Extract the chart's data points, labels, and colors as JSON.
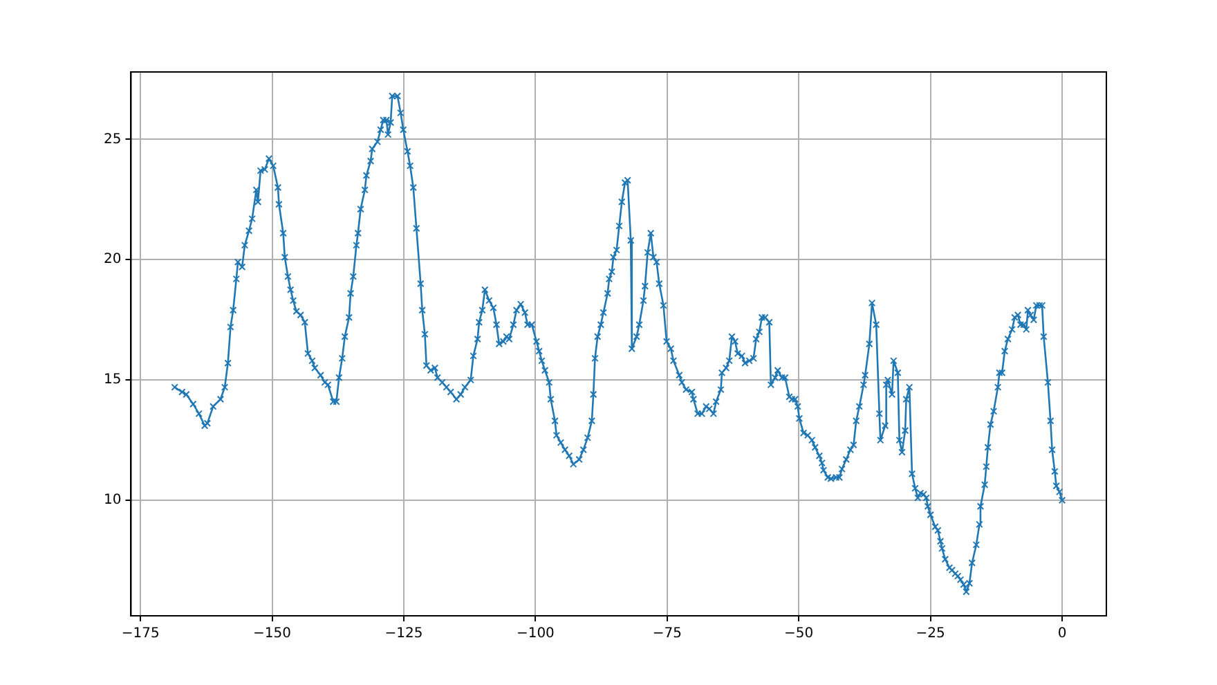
{
  "chart_data": {
    "type": "line",
    "x": [
      -168.5,
      -167.1,
      -166.3,
      -165,
      -163.9,
      -162.8,
      -162.3,
      -161.2,
      -159.8,
      -159,
      -158.4,
      -157.9,
      -157.4,
      -156.8,
      -156.5,
      -155.7,
      -155.2,
      -154.4,
      -153.8,
      -153,
      -152.7,
      -152.2,
      -151.4,
      -150.6,
      -149.8,
      -148.9,
      -148.7,
      -147.9,
      -147.6,
      -147,
      -146.5,
      -146,
      -145.4,
      -144.6,
      -143.8,
      -143.2,
      -142.4,
      -141.9,
      -140.8,
      -140,
      -139.4,
      -138.4,
      -137.8,
      -137.3,
      -136.7,
      -136.2,
      -135.4,
      -135.1,
      -134.6,
      -134,
      -133.7,
      -133.2,
      -132.4,
      -132.1,
      -131.3,
      -131,
      -130,
      -129.4,
      -128.9,
      -128.3,
      -128,
      -127.5,
      -127.2,
      -126.2,
      -125.6,
      -125.1,
      -124.3,
      -123.8,
      -123.2,
      -122.6,
      -121.8,
      -121.5,
      -121,
      -120.7,
      -119.9,
      -119.1,
      -118.6,
      -117.7,
      -116.9,
      -116.1,
      -115,
      -114.2,
      -113.4,
      -112.3,
      -111.8,
      -111,
      -110.7,
      -110.1,
      -109.6,
      -108.8,
      -108,
      -107.4,
      -106.9,
      -106.1,
      -105.5,
      -105,
      -104.2,
      -103.6,
      -102.8,
      -102,
      -101.5,
      -100.7,
      -99.8,
      -99.3,
      -98.8,
      -98.2,
      -97.4,
      -97.1,
      -96.3,
      -96,
      -95.2,
      -94.4,
      -93.6,
      -92.8,
      -91.7,
      -90.9,
      -90.1,
      -89.3,
      -89,
      -88.7,
      -88.2,
      -87.6,
      -87.1,
      -86.3,
      -86,
      -85.5,
      -85.2,
      -84.6,
      -84.1,
      -83.6,
      -83,
      -82.5,
      -81.9,
      -81.7,
      -80.8,
      -80.3,
      -79.5,
      -79.2,
      -78.7,
      -78.1,
      -77.6,
      -77,
      -76.5,
      -75.7,
      -75.1,
      -74.3,
      -73.8,
      -72.7,
      -72.2,
      -71.4,
      -70.3,
      -70,
      -69.2,
      -68.4,
      -67.6,
      -67,
      -66.2,
      -65.7,
      -64.8,
      -64.6,
      -63.8,
      -63.2,
      -62.7,
      -62.1,
      -61.6,
      -60.8,
      -60.2,
      -59.4,
      -58.6,
      -58.1,
      -57.5,
      -57,
      -56.4,
      -55.6,
      -55.3,
      -54.5,
      -54,
      -53.2,
      -52.6,
      -51.8,
      -51.3,
      -50.7,
      -50.2,
      -49.9,
      -49.1,
      -48.3,
      -47.5,
      -46.9,
      -46.1,
      -45.6,
      -45.3,
      -44.5,
      -43.9,
      -42.9,
      -42.3,
      -41.8,
      -41,
      -40.2,
      -39.6,
      -39.1,
      -38.5,
      -37.7,
      -37.4,
      -36.6,
      -36.1,
      -35.3,
      -34.7,
      -34.5,
      -33.6,
      -33.4,
      -33.1,
      -32.3,
      -32,
      -31.2,
      -30.9,
      -30.4,
      -29.8,
      -29.6,
      -29,
      -28.5,
      -27.9,
      -27.4,
      -26.9,
      -26.3,
      -25.8,
      -25.5,
      -25,
      -24.1,
      -23.6,
      -23.1,
      -22.8,
      -22.2,
      -21.4,
      -20.9,
      -20.3,
      -19.8,
      -19.3,
      -18.7,
      -18.2,
      -17.6,
      -17.1,
      -16.3,
      -15.7,
      -15.5,
      -14.7,
      -14.4,
      -14.1,
      -13.6,
      -13,
      -12.2,
      -11.9,
      -11.4,
      -10.9,
      -10.3,
      -9.5,
      -9,
      -8.4,
      -7.9,
      -7.3,
      -6.8,
      -6.5,
      -6,
      -5.4,
      -4.9,
      -4.3,
      -3.8,
      -3.5,
      -2.7,
      -2.2,
      -1.9,
      -1.4,
      -1.1,
      -0.5,
      0
    ],
    "series": [
      {
        "color": "#1f77b4",
        "values": [
          14.7,
          14.5,
          14.4,
          14.0,
          13.6,
          13.1,
          13.2,
          13.9,
          14.2,
          14.7,
          15.7,
          17.2,
          17.9,
          19.2,
          19.9,
          19.7,
          20.6,
          21.2,
          21.7,
          22.9,
          22.4,
          23.7,
          23.75,
          24.2,
          23.9,
          23.0,
          22.3,
          21.1,
          20.1,
          19.3,
          18.75,
          18.3,
          17.85,
          17.7,
          17.4,
          16.1,
          15.8,
          15.5,
          15.2,
          14.9,
          14.8,
          14.1,
          14.1,
          15.1,
          15.9,
          16.8,
          17.6,
          18.6,
          19.3,
          20.6,
          21.1,
          22.1,
          22.9,
          23.5,
          24.1,
          24.6,
          24.9,
          25.4,
          25.8,
          25.8,
          25.2,
          25.7,
          26.8,
          26.8,
          26.1,
          25.4,
          24.5,
          23.9,
          23.0,
          21.3,
          19.0,
          17.9,
          16.9,
          15.6,
          15.4,
          15.5,
          15.1,
          14.9,
          14.7,
          14.5,
          14.2,
          14.4,
          14.7,
          15.0,
          16.0,
          16.7,
          17.4,
          17.9,
          18.75,
          18.3,
          18.0,
          17.3,
          16.5,
          16.6,
          16.8,
          16.7,
          17.3,
          17.9,
          18.15,
          17.8,
          17.3,
          17.3,
          16.6,
          16.2,
          15.8,
          15.4,
          14.9,
          14.2,
          13.3,
          12.7,
          12.4,
          12.1,
          11.85,
          11.5,
          11.7,
          12.1,
          12.6,
          13.3,
          14.4,
          15.9,
          16.8,
          17.3,
          17.8,
          18.6,
          19.2,
          19.5,
          20.1,
          20.4,
          21.4,
          22.4,
          23.2,
          23.3,
          20.8,
          16.3,
          16.8,
          17.3,
          18.3,
          18.9,
          20.3,
          21.1,
          20.1,
          19.9,
          19.0,
          18.1,
          16.6,
          16.3,
          15.8,
          15.2,
          14.9,
          14.6,
          14.5,
          14.2,
          13.6,
          13.6,
          13.9,
          13.8,
          13.6,
          14.1,
          14.6,
          15.3,
          15.5,
          15.8,
          16.8,
          16.6,
          16.1,
          16.0,
          15.7,
          15.8,
          15.9,
          16.7,
          17.0,
          17.6,
          17.6,
          17.4,
          14.8,
          15.1,
          15.4,
          15.1,
          15.1,
          14.3,
          14.2,
          14.2,
          13.9,
          13.4,
          12.8,
          12.7,
          12.5,
          12.2,
          11.85,
          11.55,
          11.25,
          10.95,
          10.9,
          10.95,
          10.95,
          11.3,
          11.7,
          12.1,
          12.3,
          13.3,
          13.9,
          14.8,
          15.2,
          16.5,
          18.2,
          17.3,
          13.6,
          12.5,
          13.1,
          14.8,
          15.0,
          14.4,
          15.8,
          15.3,
          12.5,
          12.0,
          12.9,
          14.2,
          14.7,
          11.1,
          10.5,
          10.1,
          10.3,
          10.25,
          10.1,
          9.75,
          9.4,
          8.9,
          8.75,
          8.3,
          8.0,
          7.55,
          7.2,
          7.1,
          6.95,
          6.85,
          6.7,
          6.5,
          6.2,
          6.55,
          7.4,
          8.15,
          9.0,
          9.75,
          10.65,
          11.4,
          12.2,
          13.15,
          13.7,
          14.7,
          15.3,
          15.3,
          16.2,
          16.7,
          17.1,
          17.6,
          17.7,
          17.3,
          17.3,
          17.1,
          17.9,
          17.7,
          17.5,
          18.1,
          18.1,
          18.1,
          16.8,
          14.9,
          13.3,
          12.1,
          11.2,
          10.6,
          10.35,
          10.0
        ]
      }
    ],
    "xlim": [
      -176.8,
      8.4
    ],
    "ylim": [
      5.2,
      27.8
    ],
    "xticks": [
      -175,
      -150,
      -125,
      -100,
      -75,
      -50,
      -25,
      0
    ],
    "yticks": [
      10,
      15,
      20,
      25
    ],
    "grid": true,
    "marker": "cross",
    "line_style": "solid",
    "legend": false
  }
}
